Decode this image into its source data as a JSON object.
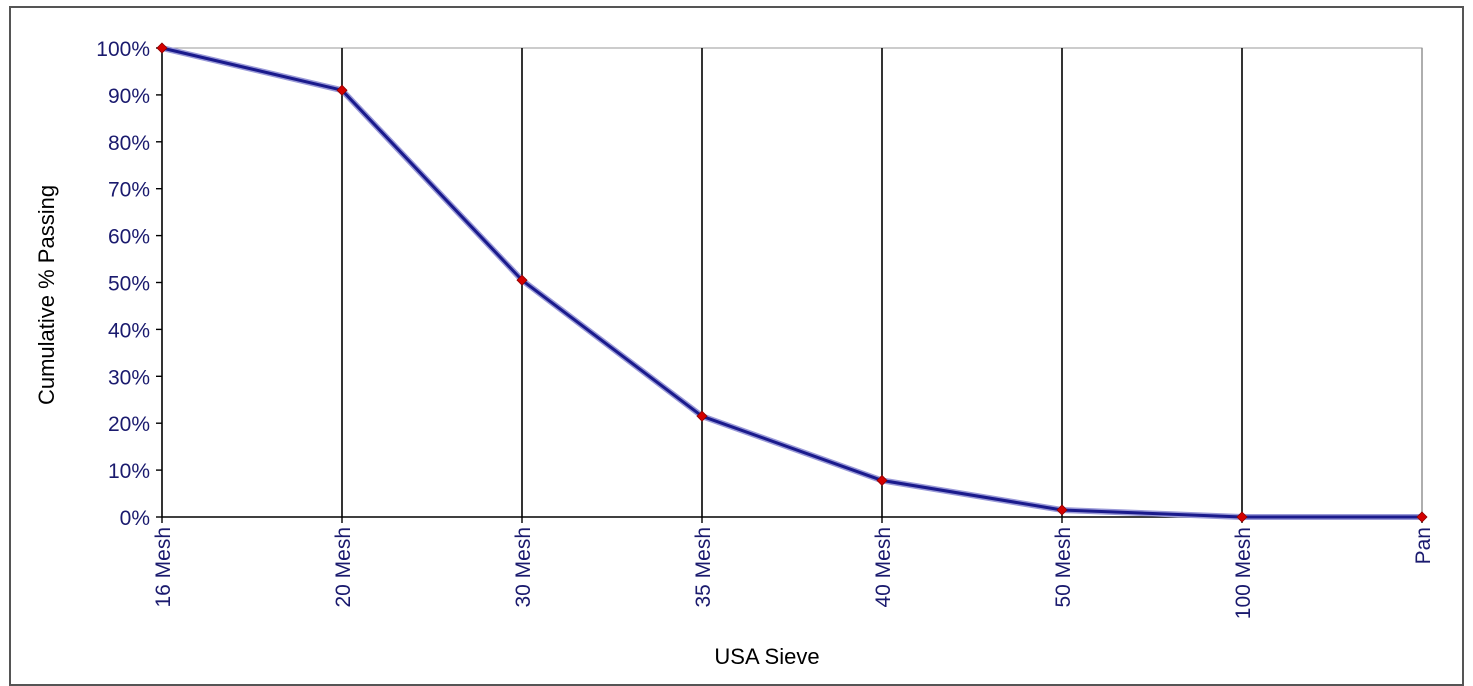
{
  "chart_data": {
    "type": "line",
    "title": "",
    "xlabel": "USA Sieve",
    "ylabel": "Cumulative % Passing",
    "categories": [
      "16 Mesh",
      "20 Mesh",
      "30 Mesh",
      "35 Mesh",
      "40 Mesh",
      "50 Mesh",
      "100 Mesh",
      "Pan"
    ],
    "y_tick_labels": [
      "0%",
      "10%",
      "20%",
      "30%",
      "40%",
      "50%",
      "60%",
      "70%",
      "80%",
      "90%",
      "100%"
    ],
    "ylim": [
      0,
      100
    ],
    "grid": "vertical lines at each category",
    "legend": "none",
    "series": [
      {
        "values": [
          100,
          91,
          50.5,
          21.5,
          7.8,
          1.5,
          0,
          0
        ]
      }
    ],
    "colors": {
      "line": "#1a1a8c",
      "marker": "#d40000",
      "grid": "#000000",
      "tick_text": "#1a1a6e"
    }
  }
}
